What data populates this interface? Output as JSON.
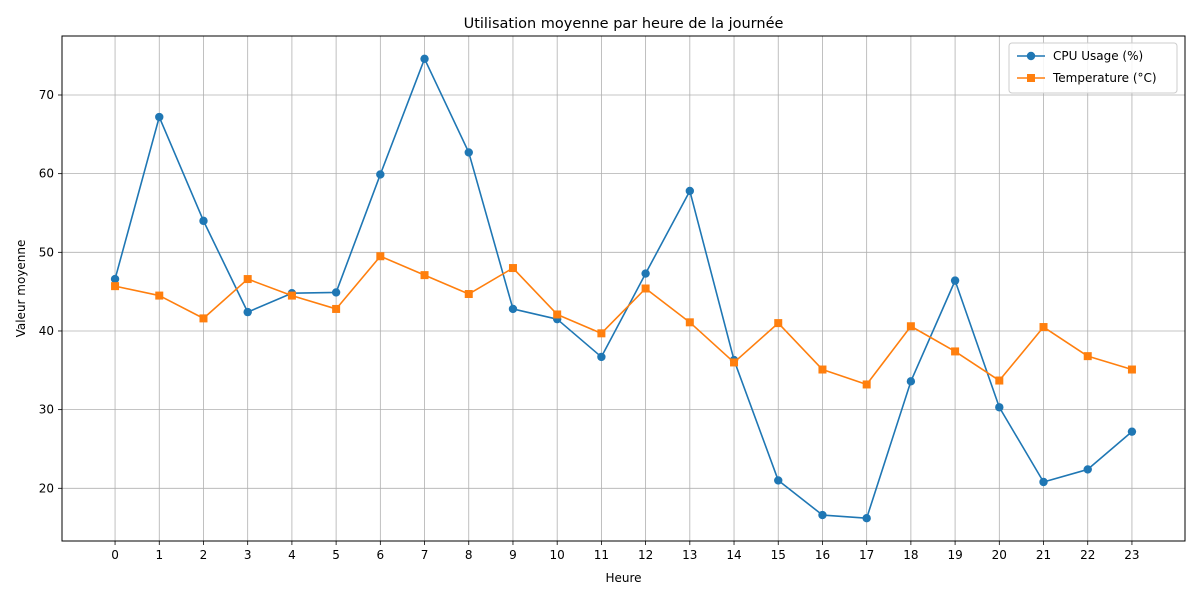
{
  "chart_data": {
    "type": "line",
    "title": "Utilisation moyenne par heure de la journée",
    "xlabel": "Heure",
    "ylabel": "Valeur moyenne",
    "x": [
      0,
      1,
      2,
      3,
      4,
      5,
      6,
      7,
      8,
      9,
      10,
      11,
      12,
      13,
      14,
      15,
      16,
      17,
      18,
      19,
      20,
      21,
      22,
      23
    ],
    "xlim": [
      -1.2,
      24.2
    ],
    "ylim": [
      13.3,
      77.5
    ],
    "yticks": [
      20,
      30,
      40,
      50,
      60,
      70
    ],
    "grid": true,
    "legend_position": "top-right",
    "series": [
      {
        "name": "CPU Usage (%)",
        "color": "#1f77b4",
        "marker": "circle",
        "values": [
          46.6,
          67.2,
          54.0,
          42.4,
          44.8,
          44.9,
          59.9,
          74.6,
          62.7,
          42.8,
          41.5,
          36.7,
          47.3,
          57.8,
          36.3,
          21.0,
          16.6,
          16.2,
          33.6,
          46.4,
          30.3,
          20.8,
          22.4,
          27.2
        ]
      },
      {
        "name": "Temperature (°C)",
        "color": "#ff7f0e",
        "marker": "square",
        "values": [
          45.7,
          44.5,
          41.6,
          46.6,
          44.5,
          42.8,
          49.5,
          47.1,
          44.7,
          48.0,
          42.1,
          39.7,
          45.4,
          41.1,
          36.0,
          41.0,
          35.1,
          33.2,
          40.6,
          37.4,
          33.7,
          40.5,
          36.8,
          35.1
        ]
      }
    ]
  }
}
